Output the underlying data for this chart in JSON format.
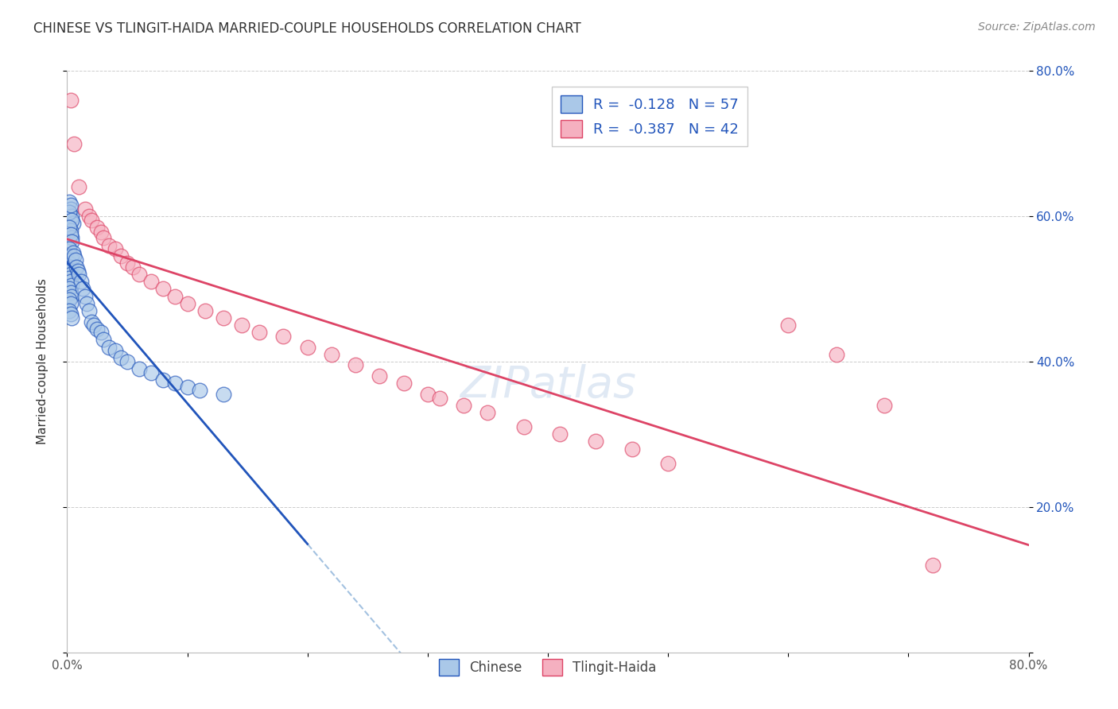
{
  "title": "CHINESE VS TLINGIT-HAIDA MARRIED-COUPLE HOUSEHOLDS CORRELATION CHART",
  "source": "Source: ZipAtlas.com",
  "ylabel": "Married-couple Households",
  "xlim": [
    0.0,
    0.8
  ],
  "ylim": [
    0.0,
    0.8
  ],
  "xtick_positions": [
    0.0,
    0.1,
    0.2,
    0.3,
    0.4,
    0.5,
    0.6,
    0.7,
    0.8
  ],
  "xtick_labels": [
    "0.0%",
    "",
    "",
    "",
    "",
    "",
    "",
    "",
    "80.0%"
  ],
  "ytick_positions": [
    0.0,
    0.2,
    0.4,
    0.6,
    0.8
  ],
  "ytick_labels_right": [
    "",
    "20.0%",
    "40.0%",
    "60.0%",
    "80.0%"
  ],
  "legend_r1": "-0.128",
  "legend_n1": "57",
  "legend_r2": "-0.387",
  "legend_n2": "42",
  "chinese_color": "#aac8e8",
  "tlingit_color": "#f5b0c0",
  "trendline_chinese_solid_color": "#2255bb",
  "trendline_tlingit_color": "#dd4466",
  "dashed_line_color": "#99bbdd",
  "watermark": "ZIPatlas",
  "title_fontsize": 12,
  "source_fontsize": 10,
  "legend_text_color": "#2255bb",
  "chinese_x": [
    0.002,
    0.003,
    0.004,
    0.005,
    0.003,
    0.004,
    0.002,
    0.003,
    0.004,
    0.002,
    0.003,
    0.004,
    0.002,
    0.003,
    0.004,
    0.002,
    0.003,
    0.002,
    0.003,
    0.002,
    0.003,
    0.004,
    0.002,
    0.003,
    0.004,
    0.002,
    0.003,
    0.002,
    0.003,
    0.004,
    0.005,
    0.006,
    0.007,
    0.008,
    0.009,
    0.01,
    0.012,
    0.013,
    0.015,
    0.016,
    0.018,
    0.02,
    0.022,
    0.025,
    0.028,
    0.03,
    0.035,
    0.04,
    0.045,
    0.05,
    0.06,
    0.07,
    0.08,
    0.09,
    0.1,
    0.11,
    0.13
  ],
  "chinese_y": [
    0.62,
    0.61,
    0.6,
    0.59,
    0.58,
    0.57,
    0.605,
    0.615,
    0.595,
    0.585,
    0.575,
    0.565,
    0.555,
    0.545,
    0.54,
    0.535,
    0.53,
    0.525,
    0.52,
    0.515,
    0.51,
    0.505,
    0.5,
    0.495,
    0.49,
    0.485,
    0.48,
    0.47,
    0.465,
    0.46,
    0.55,
    0.545,
    0.54,
    0.53,
    0.525,
    0.52,
    0.51,
    0.5,
    0.49,
    0.48,
    0.47,
    0.455,
    0.45,
    0.445,
    0.44,
    0.43,
    0.42,
    0.415,
    0.405,
    0.4,
    0.39,
    0.385,
    0.375,
    0.37,
    0.365,
    0.36,
    0.355
  ],
  "tlingit_x": [
    0.003,
    0.006,
    0.01,
    0.015,
    0.018,
    0.02,
    0.025,
    0.028,
    0.03,
    0.035,
    0.04,
    0.045,
    0.05,
    0.055,
    0.06,
    0.07,
    0.08,
    0.09,
    0.1,
    0.115,
    0.13,
    0.145,
    0.16,
    0.18,
    0.2,
    0.22,
    0.24,
    0.26,
    0.28,
    0.3,
    0.31,
    0.33,
    0.35,
    0.38,
    0.41,
    0.44,
    0.47,
    0.5,
    0.6,
    0.64,
    0.68,
    0.72
  ],
  "tlingit_y": [
    0.76,
    0.7,
    0.64,
    0.61,
    0.6,
    0.595,
    0.585,
    0.578,
    0.57,
    0.56,
    0.555,
    0.545,
    0.535,
    0.53,
    0.52,
    0.51,
    0.5,
    0.49,
    0.48,
    0.47,
    0.46,
    0.45,
    0.44,
    0.435,
    0.42,
    0.41,
    0.395,
    0.38,
    0.37,
    0.355,
    0.35,
    0.34,
    0.33,
    0.31,
    0.3,
    0.29,
    0.28,
    0.26,
    0.45,
    0.41,
    0.34,
    0.12
  ]
}
